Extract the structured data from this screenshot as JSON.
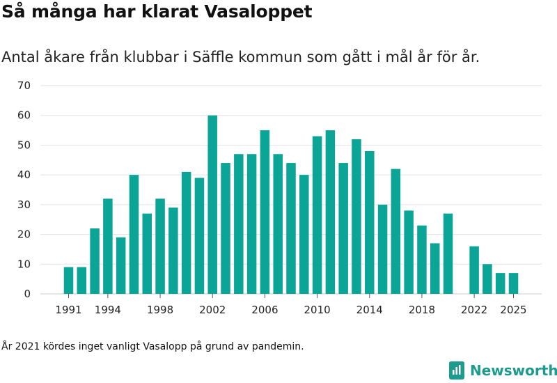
{
  "header": {
    "title": "Så många har klarat Vasaloppet",
    "subtitle": "Antal åkare från klubbar i Säffle kommun som gått i mål år för år."
  },
  "footnote": "År 2021 kördes inget vanligt Vasalopp på grund av pandemin.",
  "brand": {
    "name": "Newsworthy",
    "icon": "newsworthy-logo-icon",
    "color": "#1d9b8f"
  },
  "chart_data": {
    "type": "bar",
    "title": "Så många har klarat Vasaloppet",
    "subtitle": "Antal åkare från klubbar i Säffle kommun som gått i mål år för år.",
    "xlabel": "",
    "ylabel": "",
    "bar_color": "#0aa597",
    "grid": true,
    "ylim": [
      0,
      70
    ],
    "y_ticks": [
      0,
      10,
      20,
      30,
      40,
      50,
      60,
      70
    ],
    "x_tick_labels": [
      1991,
      1994,
      1998,
      2002,
      2006,
      2010,
      2014,
      2018,
      2022,
      2025
    ],
    "x": [
      1991,
      1992,
      1993,
      1994,
      1995,
      1996,
      1997,
      1998,
      1999,
      2000,
      2001,
      2002,
      2003,
      2004,
      2005,
      2006,
      2007,
      2008,
      2009,
      2010,
      2011,
      2012,
      2013,
      2014,
      2015,
      2016,
      2017,
      2018,
      2019,
      2020,
      2022,
      2023,
      2024,
      2025
    ],
    "values": [
      9,
      9,
      22,
      32,
      19,
      40,
      27,
      32,
      29,
      41,
      39,
      60,
      44,
      47,
      47,
      55,
      47,
      44,
      40,
      53,
      55,
      44,
      52,
      48,
      30,
      42,
      28,
      23,
      17,
      27,
      16,
      10,
      7,
      7
    ]
  }
}
